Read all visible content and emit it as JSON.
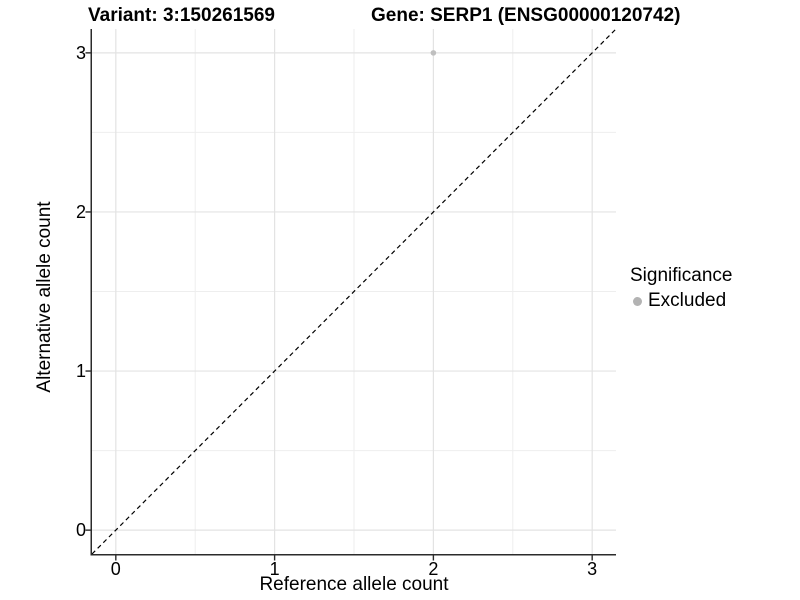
{
  "chart_data": {
    "type": "scatter",
    "titles": [
      "Variant: 3:150261569",
      "Gene: SERP1 (ENSG00000120742)"
    ],
    "xlabel": "Reference allele count",
    "ylabel": "Alternative allele count",
    "xlim": [
      -0.15,
      3.15
    ],
    "ylim": [
      -0.15,
      3.15
    ],
    "x_ticks": [
      0,
      1,
      2,
      3
    ],
    "y_ticks": [
      0,
      1,
      2,
      3
    ],
    "x_minor_ticks": [
      0.5,
      1.5,
      2.5
    ],
    "y_minor_ticks": [
      0.5,
      1.5,
      2.5
    ],
    "grid": "major-and-minor",
    "identity_line": {
      "style": "dashed",
      "color": "#000000",
      "from": [
        -0.15,
        -0.15
      ],
      "to": [
        3.15,
        3.15
      ]
    },
    "series": [
      {
        "name": "Excluded",
        "color": "#bfbfbf",
        "point_radius": 2.8,
        "points": [
          {
            "x": 2,
            "y": 3
          }
        ]
      }
    ],
    "legend": {
      "title": "Significance",
      "position": "right",
      "entries": [
        {
          "label": "Excluded",
          "color": "#b3b3b3"
        }
      ]
    },
    "colors": {
      "background": "#ffffff",
      "grid_major": "#e3e3e3",
      "grid_minor": "#eeeeee",
      "axis_line": "#2b2b2b",
      "tick_mark": "#2b2b2b",
      "text": "#000000"
    }
  }
}
